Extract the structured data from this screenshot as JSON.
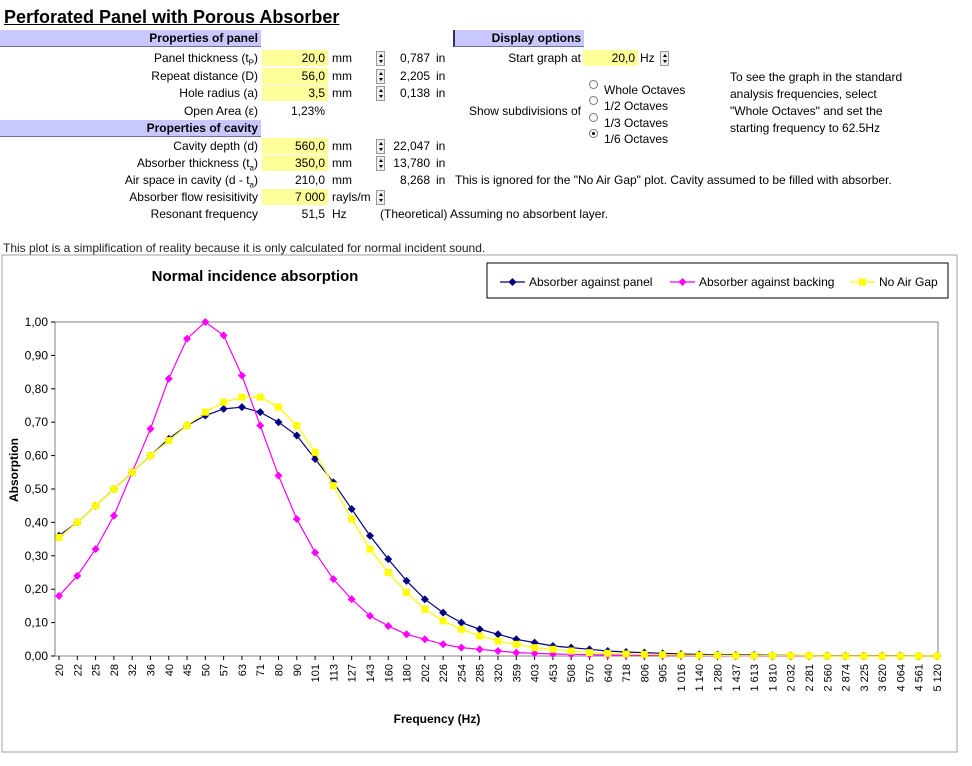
{
  "header": {
    "title": "Perforated Panel with Porous Absorber"
  },
  "panel": {
    "heading": "Properties of panel",
    "rows": [
      {
        "label": "Panel thickness (t",
        "sub": "P",
        "label_end": ")",
        "value": "20,0",
        "unit": "mm",
        "converted": "0,787",
        "converted_unit": "in"
      },
      {
        "label": "Repeat distance (D)",
        "value": "56,0",
        "unit": "mm",
        "converted": "2,205",
        "converted_unit": "in"
      },
      {
        "label": "Hole radius (a)",
        "value": "3,5",
        "unit": "mm",
        "converted": "0,138",
        "converted_unit": "in"
      },
      {
        "label": "Open Area (ε)",
        "value": "1,23%"
      }
    ]
  },
  "cavity": {
    "heading": "Properties of cavity",
    "rows": [
      {
        "label": "Cavity depth (d)",
        "value": "560,0",
        "unit": "mm",
        "converted": "22,047",
        "converted_unit": "in"
      },
      {
        "label": "Absorber thickness (t",
        "sub": "a",
        "label_end": ")",
        "value": "350,0",
        "unit": "mm",
        "converted": "13,780",
        "converted_unit": "in"
      },
      {
        "label": "Air space in cavity (d - t",
        "sub": "a",
        "label_end": ")",
        "value": "210,0",
        "unit": "mm",
        "converted": "8,268",
        "converted_unit": "in",
        "note": "This is ignored for the \"No Air Gap\" plot.  Cavity assumed to be filled with absorber."
      },
      {
        "label": "Absorber flow resisitivity",
        "value": "7 000",
        "unit": "rayls/m"
      },
      {
        "label": "Resonant frequency",
        "value": "51,5",
        "unit": "Hz",
        "note": "(Theoretical) Assuming no absorbent layer."
      }
    ]
  },
  "display": {
    "heading": "Display options",
    "start_label": "Start graph at",
    "start_value": "20,0",
    "start_unit": "Hz",
    "subdivision_label": "Show subdivisions of",
    "options": [
      "Whole Octaves",
      "1/2 Octaves",
      "1/3 Octaves",
      "1/6 Octaves"
    ],
    "selected": 3,
    "help": [
      "To see the graph in the standard",
      "analysis frequencies, select",
      "\"Whole Octaves\" and set the",
      "starting frequency to 62.5Hz"
    ]
  },
  "footnote": "This plot is a simplification of reality because it is only calculated for normal incident sound.",
  "chart_data": {
    "type": "line",
    "title": "Normal incidence absorption",
    "x_label": "Frequency (Hz)",
    "y_label": "Absorption",
    "categories": [
      "20",
      "22",
      "25",
      "28",
      "32",
      "36",
      "40",
      "45",
      "50",
      "57",
      "63",
      "71",
      "80",
      "90",
      "101",
      "113",
      "127",
      "143",
      "160",
      "180",
      "202",
      "226",
      "254",
      "285",
      "320",
      "359",
      "403",
      "453",
      "508",
      "570",
      "640",
      "718",
      "806",
      "905",
      "1 016",
      "1 140",
      "1 280",
      "1 437",
      "1 613",
      "1 810",
      "2 032",
      "2 281",
      "2 560",
      "2 874",
      "3 225",
      "3 620",
      "4 064",
      "4 561",
      "5 120"
    ],
    "series": [
      {
        "name": "Absorber against panel",
        "color": "#000080",
        "marker": "diamond",
        "values": [
          0.36,
          0.4,
          0.45,
          0.5,
          0.55,
          0.6,
          0.65,
          0.69,
          0.72,
          0.74,
          0.745,
          0.73,
          0.7,
          0.66,
          0.59,
          0.52,
          0.44,
          0.36,
          0.29,
          0.225,
          0.17,
          0.13,
          0.1,
          0.08,
          0.065,
          0.05,
          0.04,
          0.03,
          0.025,
          0.02,
          0.015,
          0.012,
          0.01,
          0.008,
          0.006,
          0.005,
          0.004,
          0.003,
          0.003,
          0.002,
          0.002,
          0.001,
          0.001,
          0.001,
          0.001,
          0.001,
          0.001,
          0,
          0
        ]
      },
      {
        "name": "Absorber against backing",
        "color": "#ff00ff",
        "marker": "diamond",
        "values": [
          0.18,
          0.24,
          0.32,
          0.42,
          0.55,
          0.68,
          0.83,
          0.95,
          1.0,
          0.96,
          0.84,
          0.69,
          0.54,
          0.41,
          0.31,
          0.23,
          0.17,
          0.12,
          0.09,
          0.065,
          0.05,
          0.035,
          0.025,
          0.02,
          0.015,
          0.01,
          0.008,
          0.006,
          0.005,
          0.004,
          0.003,
          0.002,
          0.002,
          0.001,
          0.001,
          0.001,
          0.001,
          0.001,
          0,
          0,
          0,
          0,
          0,
          0,
          0,
          0,
          0,
          0,
          0
        ]
      },
      {
        "name": "No Air Gap",
        "color": "#ffff00",
        "marker": "square",
        "values": [
          0.355,
          0.4,
          0.45,
          0.5,
          0.55,
          0.6,
          0.645,
          0.69,
          0.73,
          0.76,
          0.775,
          0.775,
          0.745,
          0.69,
          0.61,
          0.51,
          0.41,
          0.32,
          0.25,
          0.19,
          0.14,
          0.105,
          0.08,
          0.06,
          0.045,
          0.035,
          0.025,
          0.02,
          0.015,
          0.01,
          0.008,
          0.006,
          0.005,
          0.004,
          0.003,
          0.002,
          0.002,
          0.001,
          0.001,
          0.001,
          0.001,
          0.001,
          0,
          0,
          0,
          0,
          0,
          0,
          0
        ]
      }
    ],
    "ylim": [
      0,
      1
    ],
    "yticks": [
      {
        "value": 0,
        "label": "0,00"
      },
      {
        "value": 0.1,
        "label": "0,10"
      },
      {
        "value": 0.2,
        "label": "0,20"
      },
      {
        "value": 0.3,
        "label": "0,30"
      },
      {
        "value": 0.4,
        "label": "0,40"
      },
      {
        "value": 0.5,
        "label": "0,50"
      },
      {
        "value": 0.6,
        "label": "0,60"
      },
      {
        "value": 0.7,
        "label": "0,70"
      },
      {
        "value": 0.8,
        "label": "0,80"
      },
      {
        "value": 0.9,
        "label": "0,90"
      },
      {
        "value": 1,
        "label": "1,00"
      }
    ],
    "grid": false,
    "legend": "top-right"
  }
}
